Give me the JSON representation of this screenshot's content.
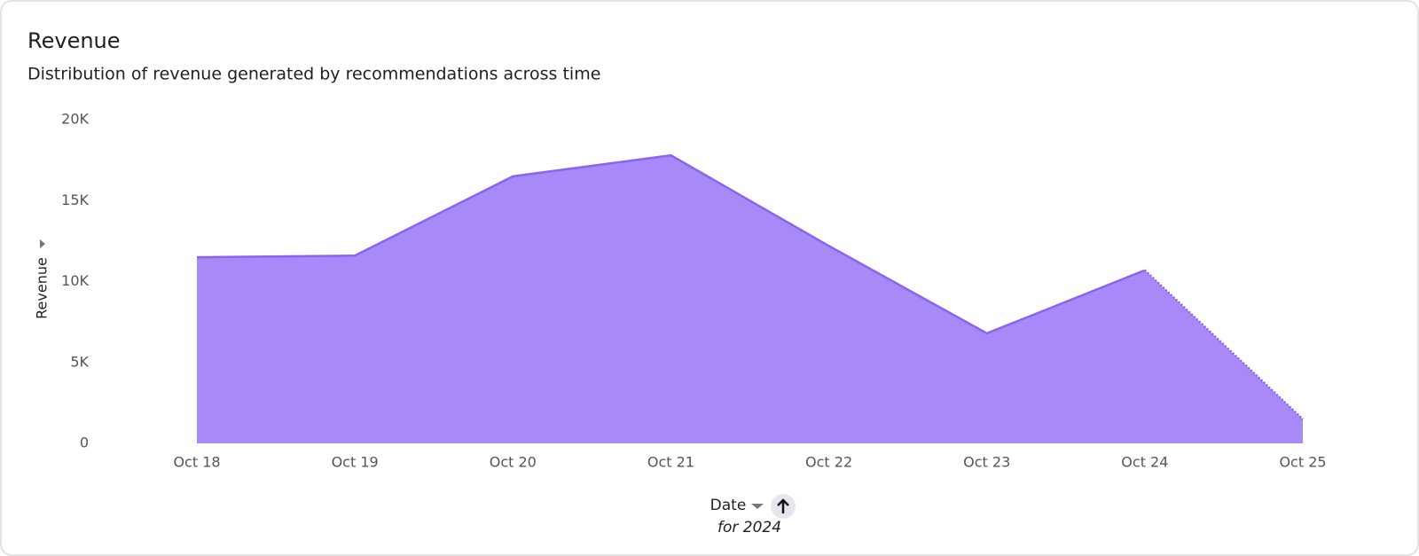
{
  "chart_data": {
    "type": "area",
    "title": "Revenue",
    "subtitle": "Distribution of revenue generated by recommendations across time",
    "y_label": "Revenue",
    "x_label": "Date",
    "x_note": "for 2024",
    "categories": [
      "Oct 18",
      "Oct 19",
      "Oct 20",
      "Oct 21",
      "Oct 22",
      "Oct 23",
      "Oct 24",
      "Oct 25"
    ],
    "values": [
      11500,
      11600,
      16500,
      17800,
      12200,
      6800,
      10700,
      1500
    ],
    "color": "#a889f8",
    "line_color": "#8a63f0",
    "ylim": [
      0,
      20000
    ],
    "yticks": [
      {
        "value": 0,
        "label": "0"
      },
      {
        "value": 5000,
        "label": "5K"
      },
      {
        "value": 10000,
        "label": "10K"
      },
      {
        "value": 15000,
        "label": "15K"
      },
      {
        "value": 20000,
        "label": "20K"
      }
    ]
  }
}
